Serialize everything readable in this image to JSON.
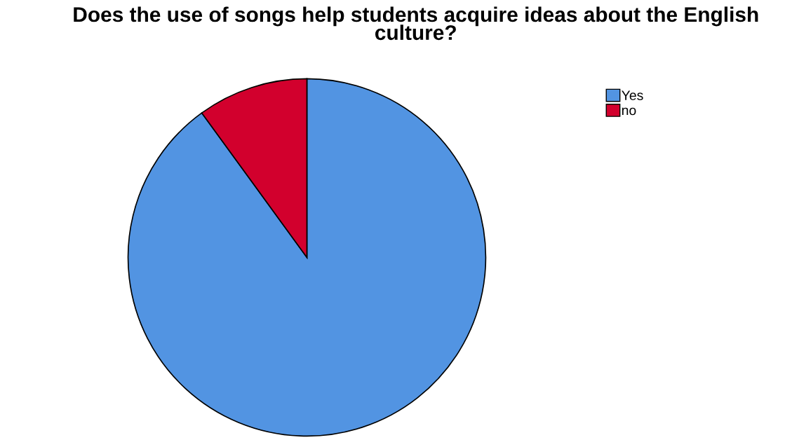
{
  "chart_data": {
    "type": "pie",
    "title": "Does the use of songs help students acquire ideas about the English culture?",
    "categories": [
      "Yes",
      "no"
    ],
    "values": [
      90,
      10
    ],
    "colors": [
      "#5294e2",
      "#d2002d"
    ],
    "legend": "top right"
  }
}
